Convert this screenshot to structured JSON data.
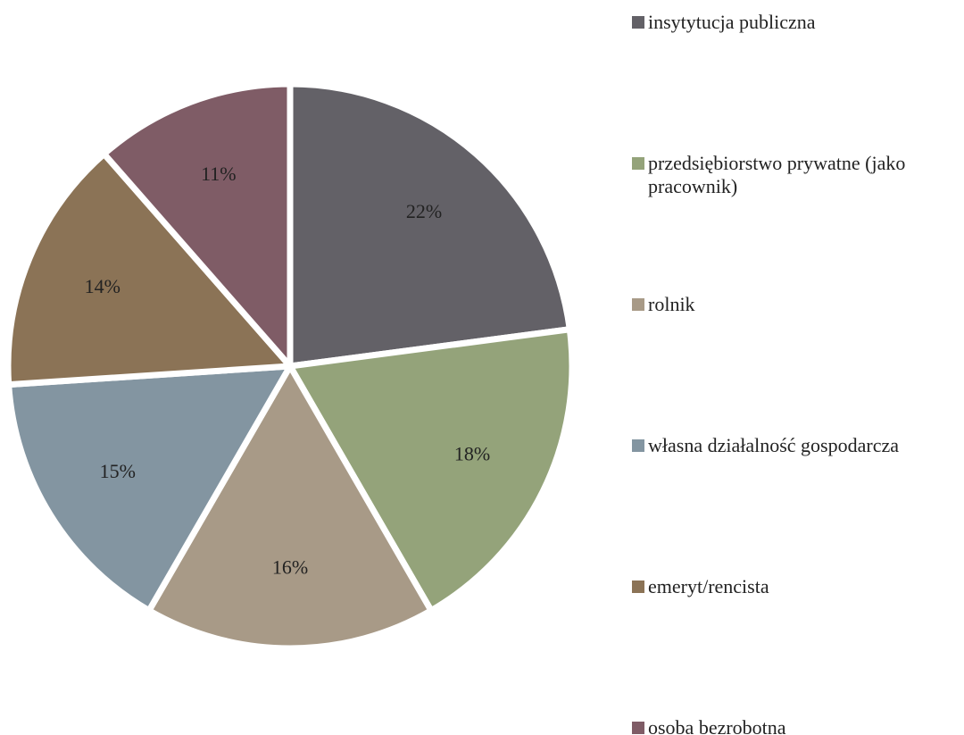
{
  "chart_data": {
    "type": "pie",
    "categories": [
      "insytytucja publiczna",
      "przedsiębiorstwo prywatne (jako pracownik)",
      "rolnik",
      "własna działalność gospodarcza",
      "emeryt/rencista",
      "osoba bezrobotna"
    ],
    "values": [
      22,
      18,
      16,
      15,
      14,
      11
    ],
    "value_labels": [
      "22%",
      "18%",
      "16%",
      "15%",
      "14%",
      "11%"
    ],
    "colors": [
      "#636167",
      "#94a37a",
      "#a89a87",
      "#8395a1",
      "#8b7356",
      "#7f5c66"
    ],
    "legend": "right"
  }
}
